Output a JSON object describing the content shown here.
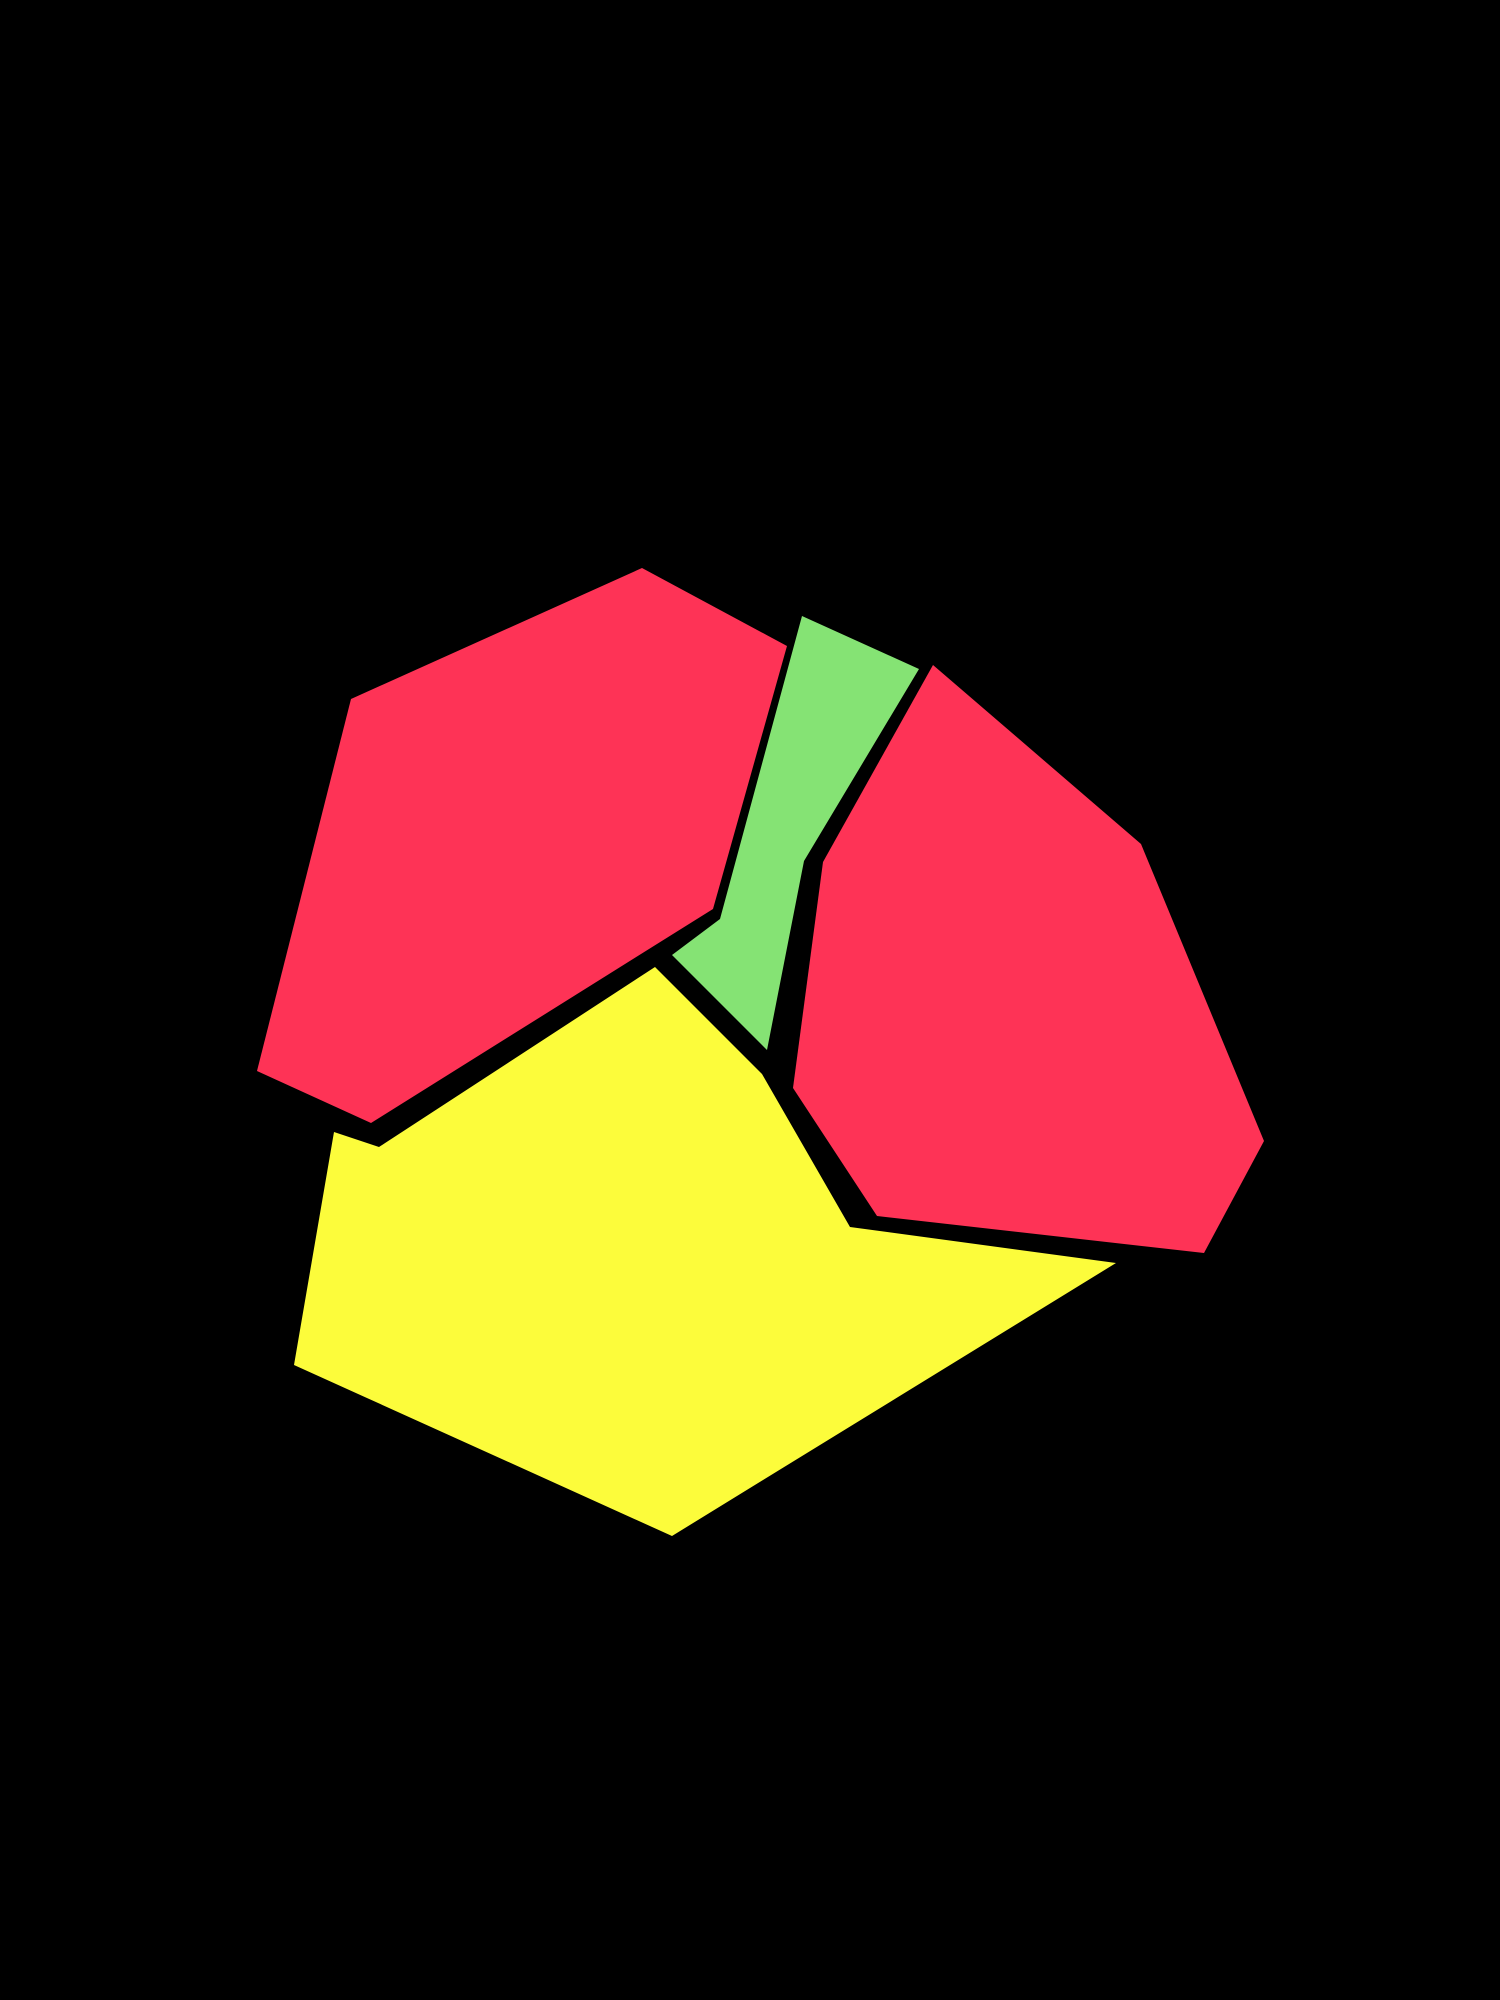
{
  "background": "#000000",
  "pieces": [
    {
      "name": "red-hexagon-left",
      "color": "#FE3356"
    },
    {
      "name": "green-sliver",
      "color": "#85E374"
    },
    {
      "name": "red-heptagon-right",
      "color": "#FE3356"
    },
    {
      "name": "yellow-polygon-bottom",
      "color": "#FCFC3B"
    }
  ]
}
